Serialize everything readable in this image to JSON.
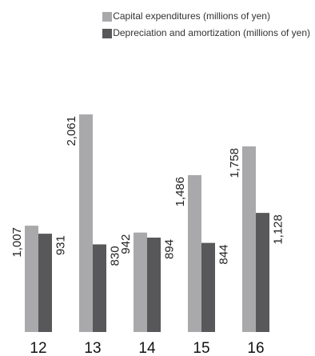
{
  "chart_data": {
    "type": "bar",
    "orientation": "vertical",
    "categories": [
      "12",
      "13",
      "14",
      "15",
      "16"
    ],
    "series": [
      {
        "name": "Capital expenditures (millions of yen)",
        "color": "#a9a9ab",
        "values": [
          1007,
          2061,
          942,
          1486,
          1758
        ],
        "labels": [
          "1,007",
          "2,061",
          "942",
          "1,486",
          "1,758"
        ]
      },
      {
        "name": "Depreciation and amortization (millions of yen)",
        "color": "#58585a",
        "values": [
          931,
          830,
          894,
          844,
          1128
        ],
        "labels": [
          "931",
          "830",
          "894",
          "844",
          "1,128"
        ]
      }
    ],
    "ylim": [
      0,
      2061
    ],
    "grid": false,
    "legend_position": "top-right",
    "data_label_orientation": "rotated-vertical"
  }
}
